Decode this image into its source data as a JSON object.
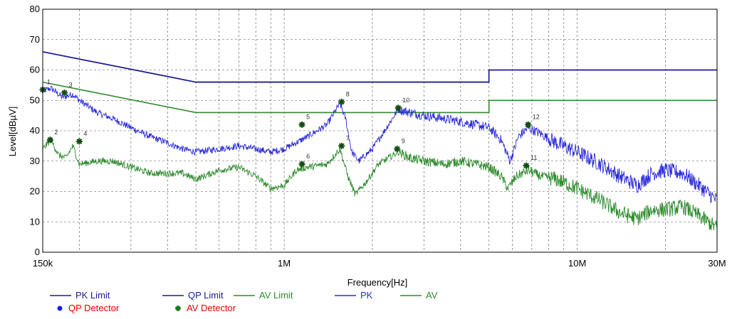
{
  "chart_data": {
    "type": "line",
    "title": "",
    "xlabel": "Frequency[Hz]",
    "ylabel": "Level[dBµV]",
    "x_scale": "log",
    "xlim_hz": [
      150000,
      30000000
    ],
    "ylim": [
      0,
      80
    ],
    "grid": true,
    "x_major_ticks": [
      {
        "value": 150000,
        "label": "150k"
      },
      {
        "value": 1000000,
        "label": "1M"
      },
      {
        "value": 10000000,
        "label": "10M"
      },
      {
        "value": 30000000,
        "label": "30M"
      }
    ],
    "x_minor_grid_hz": [
      200000,
      300000,
      400000,
      500000,
      600000,
      700000,
      800000,
      900000,
      2000000,
      3000000,
      4000000,
      5000000,
      6000000,
      7000000,
      8000000,
      9000000,
      20000000
    ],
    "y_ticks": [
      0,
      10,
      20,
      30,
      40,
      50,
      60,
      70,
      80
    ],
    "legend_placement": "bottom-left",
    "series": [
      {
        "name": "PK Limit",
        "color": "#1a1a99",
        "style": "line",
        "points": [
          [
            150000,
            66
          ],
          [
            500000,
            56
          ],
          [
            5000000,
            56
          ],
          [
            5000000,
            60
          ],
          [
            30000000,
            60
          ]
        ]
      },
      {
        "name": "QP Limit",
        "color": "#1a1a99",
        "style": "line",
        "points": [
          [
            150000,
            66
          ],
          [
            500000,
            56
          ],
          [
            5000000,
            56
          ],
          [
            5000000,
            60
          ],
          [
            30000000,
            60
          ]
        ]
      },
      {
        "name": "AV Limit",
        "color": "#2e8b2e",
        "style": "line",
        "points": [
          [
            150000,
            56
          ],
          [
            500000,
            46
          ],
          [
            5000000,
            46
          ],
          [
            5000000,
            50
          ],
          [
            30000000,
            50
          ]
        ]
      },
      {
        "name": "PK",
        "color": "#2b2bd9",
        "style": "noisy-line",
        "points": [
          [
            150000,
            53
          ],
          [
            160000,
            54
          ],
          [
            175000,
            51
          ],
          [
            190000,
            52
          ],
          [
            200000,
            50
          ],
          [
            230000,
            46
          ],
          [
            260000,
            44
          ],
          [
            300000,
            41
          ],
          [
            350000,
            38
          ],
          [
            400000,
            36
          ],
          [
            450000,
            34
          ],
          [
            500000,
            33
          ],
          [
            600000,
            34
          ],
          [
            700000,
            35
          ],
          [
            800000,
            34
          ],
          [
            900000,
            33
          ],
          [
            1000000,
            34
          ],
          [
            1200000,
            38
          ],
          [
            1400000,
            42
          ],
          [
            1550000,
            49
          ],
          [
            1620000,
            44
          ],
          [
            1700000,
            33
          ],
          [
            1800000,
            30
          ],
          [
            2000000,
            34
          ],
          [
            2200000,
            40
          ],
          [
            2450000,
            47
          ],
          [
            2700000,
            46
          ],
          [
            3000000,
            45
          ],
          [
            3500000,
            44
          ],
          [
            4000000,
            43
          ],
          [
            4500000,
            42
          ],
          [
            5000000,
            41
          ],
          [
            5500000,
            37
          ],
          [
            5900000,
            30
          ],
          [
            6300000,
            38
          ],
          [
            6800000,
            41
          ],
          [
            7500000,
            39
          ],
          [
            8500000,
            36
          ],
          [
            10000000,
            33
          ],
          [
            12000000,
            29
          ],
          [
            14000000,
            25
          ],
          [
            16000000,
            22
          ],
          [
            18000000,
            26
          ],
          [
            20000000,
            27
          ],
          [
            23000000,
            26
          ],
          [
            26000000,
            22
          ],
          [
            30000000,
            17
          ]
        ]
      },
      {
        "name": "AV",
        "color": "#2e8b2e",
        "style": "noisy-line",
        "points": [
          [
            150000,
            34
          ],
          [
            160000,
            37
          ],
          [
            170000,
            32
          ],
          [
            180000,
            31
          ],
          [
            190000,
            35
          ],
          [
            200000,
            29
          ],
          [
            230000,
            30
          ],
          [
            260000,
            30
          ],
          [
            300000,
            28
          ],
          [
            350000,
            26
          ],
          [
            400000,
            26
          ],
          [
            450000,
            26
          ],
          [
            500000,
            24
          ],
          [
            600000,
            27
          ],
          [
            700000,
            28
          ],
          [
            800000,
            25
          ],
          [
            900000,
            21
          ],
          [
            1000000,
            22
          ],
          [
            1100000,
            27
          ],
          [
            1200000,
            28
          ],
          [
            1400000,
            29
          ],
          [
            1550000,
            34
          ],
          [
            1650000,
            25
          ],
          [
            1750000,
            19
          ],
          [
            1900000,
            23
          ],
          [
            2100000,
            29
          ],
          [
            2450000,
            33
          ],
          [
            2700000,
            31
          ],
          [
            3000000,
            30
          ],
          [
            3500000,
            29
          ],
          [
            4000000,
            30
          ],
          [
            4500000,
            29
          ],
          [
            5000000,
            28
          ],
          [
            5500000,
            25
          ],
          [
            5800000,
            21
          ],
          [
            6200000,
            25
          ],
          [
            6800000,
            27
          ],
          [
            7500000,
            25
          ],
          [
            8500000,
            24
          ],
          [
            10000000,
            21
          ],
          [
            12000000,
            17
          ],
          [
            14000000,
            13
          ],
          [
            16000000,
            11
          ],
          [
            18000000,
            14
          ],
          [
            20000000,
            14
          ],
          [
            23000000,
            15
          ],
          [
            26000000,
            12
          ],
          [
            30000000,
            8
          ]
        ]
      }
    ],
    "detector_legend": [
      {
        "name": "QP Detector",
        "marker": "dot",
        "marker_color": "#1a1ae6",
        "text_color": "#e60000"
      },
      {
        "name": "AV Detector",
        "marker": "asterisk",
        "marker_color": "#1a7a1a",
        "text_color": "#e60000"
      }
    ],
    "markers": [
      {
        "label": "1",
        "freq_hz": 150000,
        "level": 53.5
      },
      {
        "label": "2",
        "freq_hz": 159000,
        "level": 37
      },
      {
        "label": "3",
        "freq_hz": 178000,
        "level": 52.5
      },
      {
        "label": "4",
        "freq_hz": 200000,
        "level": 36.5
      },
      {
        "label": "5",
        "freq_hz": 1150000,
        "level": 42
      },
      {
        "label": "6",
        "freq_hz": 1150000,
        "level": 29
      },
      {
        "label": "7",
        "freq_hz": 1570000,
        "level": 35
      },
      {
        "label": "8",
        "freq_hz": 1570000,
        "level": 49.5
      },
      {
        "label": "9",
        "freq_hz": 2430000,
        "level": 34
      },
      {
        "label": "10",
        "freq_hz": 2450000,
        "level": 47.5
      },
      {
        "label": "11",
        "freq_hz": 6700000,
        "level": 28.5
      },
      {
        "label": "12",
        "freq_hz": 6800000,
        "level": 42
      }
    ]
  }
}
